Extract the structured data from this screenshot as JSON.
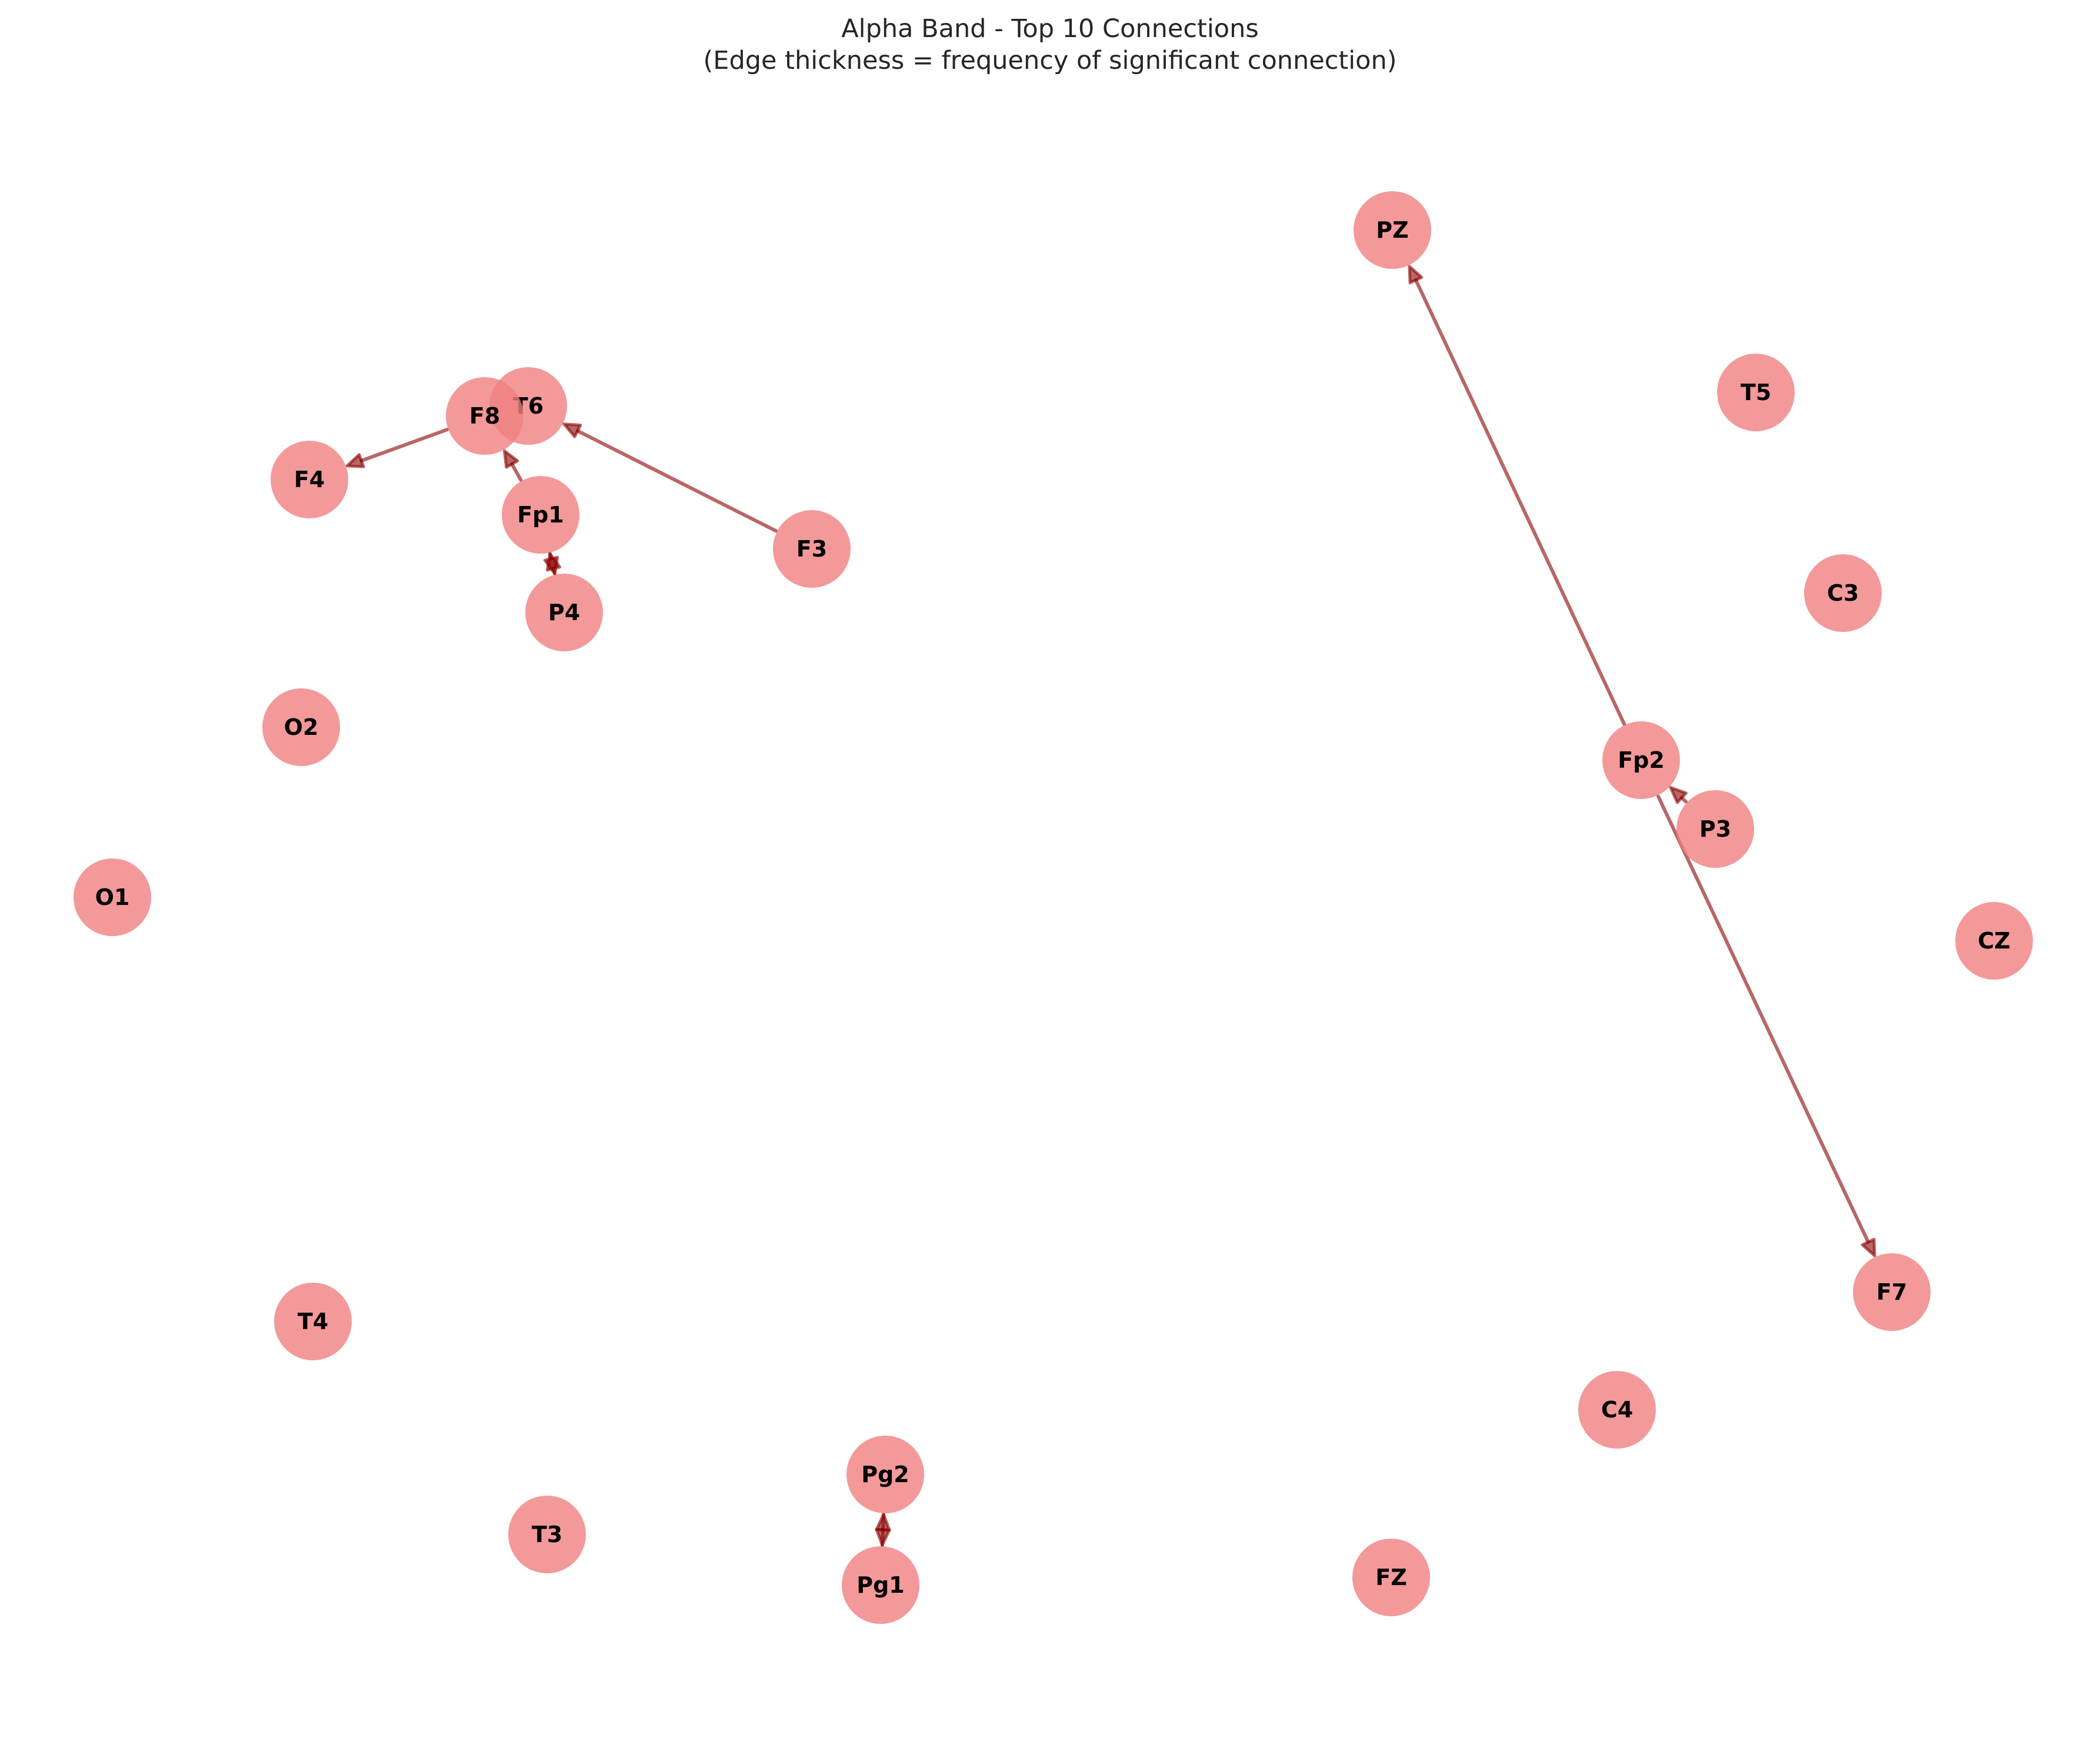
{
  "title": {
    "line1": "Alpha Band - Top 10 Connections",
    "line2": "(Edge thickness = frequency of significant connection)"
  },
  "colors": {
    "node_fill": "#f08080",
    "edge": "#8b0000",
    "text": "#000000"
  },
  "nodes": [
    {
      "id": "PZ",
      "label": "PZ"
    },
    {
      "id": "T5",
      "label": "T5"
    },
    {
      "id": "C3",
      "label": "C3"
    },
    {
      "id": "T6",
      "label": "T6"
    },
    {
      "id": "F8",
      "label": "F8"
    },
    {
      "id": "F4",
      "label": "F4"
    },
    {
      "id": "Fp1",
      "label": "Fp1"
    },
    {
      "id": "F3",
      "label": "F3"
    },
    {
      "id": "P4",
      "label": "P4"
    },
    {
      "id": "O2",
      "label": "O2"
    },
    {
      "id": "Fp2",
      "label": "Fp2"
    },
    {
      "id": "P3",
      "label": "P3"
    },
    {
      "id": "O1",
      "label": "O1"
    },
    {
      "id": "CZ",
      "label": "CZ"
    },
    {
      "id": "F7",
      "label": "F7"
    },
    {
      "id": "T4",
      "label": "T4"
    },
    {
      "id": "C4",
      "label": "C4"
    },
    {
      "id": "Pg2",
      "label": "Pg2"
    },
    {
      "id": "T3",
      "label": "T3"
    },
    {
      "id": "Pg1",
      "label": "Pg1"
    },
    {
      "id": "FZ",
      "label": "FZ"
    }
  ],
  "edges": [
    {
      "source": "Fp2",
      "target": "PZ"
    },
    {
      "source": "Fp2",
      "target": "F7"
    },
    {
      "source": "P3",
      "target": "Fp2"
    },
    {
      "source": "F8",
      "target": "F4"
    },
    {
      "source": "Fp1",
      "target": "F8"
    },
    {
      "source": "F3",
      "target": "T6"
    },
    {
      "source": "Fp1",
      "target": "P4"
    },
    {
      "source": "P4",
      "target": "Fp1"
    },
    {
      "source": "Pg1",
      "target": "Pg2"
    },
    {
      "source": "Pg2",
      "target": "Pg1"
    }
  ]
}
